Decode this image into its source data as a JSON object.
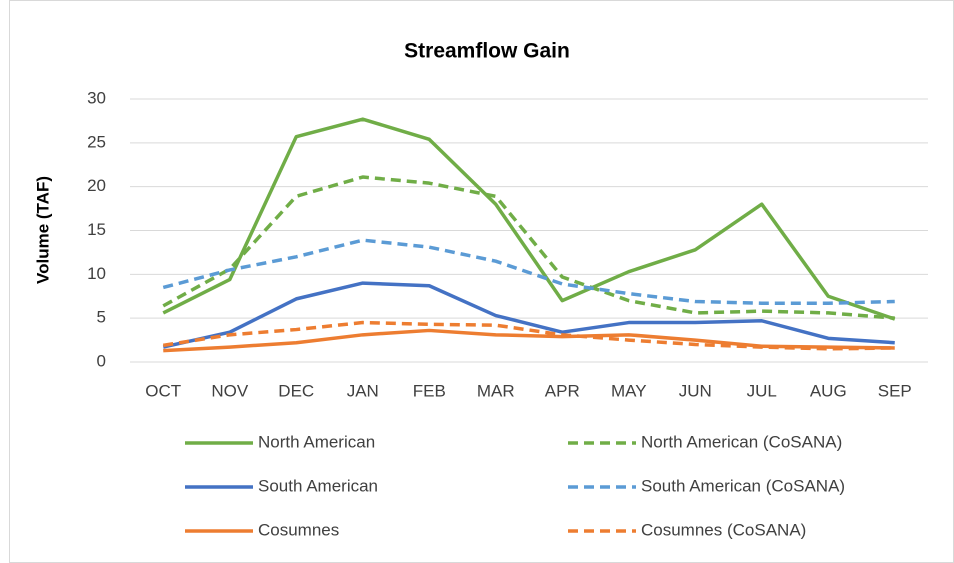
{
  "chart_data": {
    "type": "line",
    "title": "Streamflow Gain",
    "y_label": "Volume (TAF)",
    "categories": [
      "OCT",
      "NOV",
      "DEC",
      "JAN",
      "FEB",
      "MAR",
      "APR",
      "MAY",
      "JUN",
      "JUL",
      "AUG",
      "SEP"
    ],
    "series": [
      {
        "name": "North American",
        "color": "#70ad47",
        "dashed": false,
        "values": [
          5.6,
          9.4,
          25.7,
          27.7,
          25.4,
          18.0,
          7.0,
          10.3,
          12.8,
          18.0,
          7.5,
          4.9
        ]
      },
      {
        "name": "North American (CoSANA)",
        "color": "#70ad47",
        "dashed": true,
        "values": [
          6.4,
          10.6,
          18.9,
          21.1,
          20.4,
          18.9,
          9.7,
          7.0,
          5.6,
          5.8,
          5.6,
          5.0
        ]
      },
      {
        "name": "South American",
        "color": "#4472c4",
        "dashed": false,
        "values": [
          1.7,
          3.4,
          7.2,
          9.0,
          8.7,
          5.3,
          3.4,
          4.5,
          4.5,
          4.7,
          2.7,
          2.2
        ]
      },
      {
        "name": "South American (CoSANA)",
        "color": "#5b9bd5",
        "dashed": true,
        "values": [
          8.5,
          10.5,
          12.0,
          13.9,
          13.1,
          11.5,
          8.9,
          7.8,
          6.9,
          6.7,
          6.7,
          6.9
        ]
      },
      {
        "name": "Cosumnes",
        "color": "#ed7d31",
        "dashed": false,
        "values": [
          1.3,
          1.7,
          2.2,
          3.1,
          3.6,
          3.1,
          2.9,
          3.1,
          2.5,
          1.8,
          1.7,
          1.6
        ]
      },
      {
        "name": "Cosumnes (CoSANA)",
        "color": "#ed7d31",
        "dashed": true,
        "values": [
          1.9,
          3.1,
          3.7,
          4.5,
          4.3,
          4.2,
          3.1,
          2.5,
          2.0,
          1.7,
          1.5,
          1.6
        ]
      }
    ],
    "ylim": [
      0,
      30
    ],
    "yticks": [
      0,
      5,
      10,
      15,
      20,
      25,
      30
    ],
    "grid": true,
    "legend": "bottom"
  }
}
